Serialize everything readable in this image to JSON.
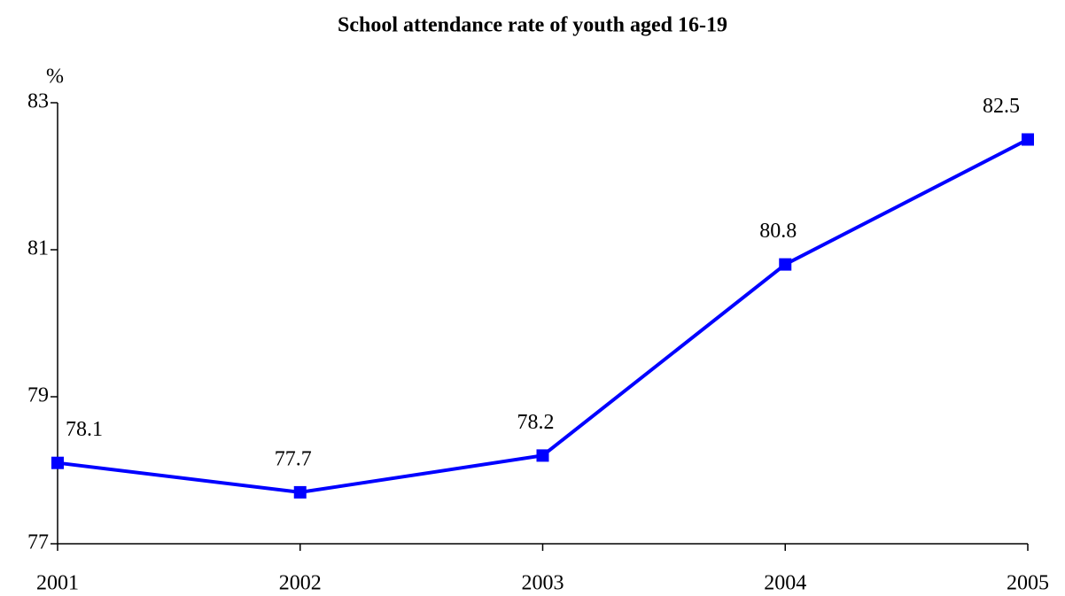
{
  "chart_data": {
    "type": "line",
    "title": "School attendance rate of youth aged 16-19",
    "y_label": "%",
    "x": [
      2001,
      2002,
      2003,
      2004,
      2005
    ],
    "series": [
      {
        "name": "School attendance rate",
        "color": "#0000ff",
        "values": [
          78.1,
          77.7,
          78.2,
          80.8,
          82.5
        ]
      }
    ],
    "xlim": [
      2001,
      2005
    ],
    "xticks": [
      2001,
      2002,
      2003,
      2004,
      2005
    ],
    "ylim": [
      77,
      83
    ],
    "yticks": [
      77,
      79,
      81,
      83
    ],
    "grid": false
  }
}
